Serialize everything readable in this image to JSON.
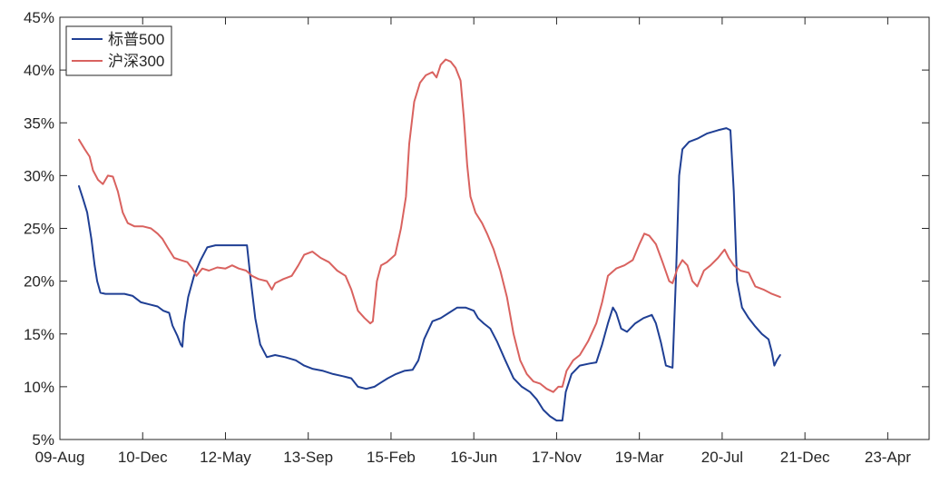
{
  "chart_data": {
    "type": "line",
    "title": "",
    "xlabel": "",
    "ylabel": "",
    "ylim": [
      0.05,
      0.45
    ],
    "xlim": [
      0,
      10.5
    ],
    "y_ticks": [
      {
        "value": 0.05,
        "label": "5%"
      },
      {
        "value": 0.1,
        "label": "10%"
      },
      {
        "value": 0.15,
        "label": "15%"
      },
      {
        "value": 0.2,
        "label": "20%"
      },
      {
        "value": 0.25,
        "label": "25%"
      },
      {
        "value": 0.3,
        "label": "30%"
      },
      {
        "value": 0.35,
        "label": "35%"
      },
      {
        "value": 0.4,
        "label": "40%"
      },
      {
        "value": 0.45,
        "label": "45%"
      }
    ],
    "x_ticks": [
      {
        "value": 0,
        "label": "09-Aug"
      },
      {
        "value": 1,
        "label": "10-Dec"
      },
      {
        "value": 2,
        "label": "12-May"
      },
      {
        "value": 3,
        "label": "13-Sep"
      },
      {
        "value": 4,
        "label": "15-Feb"
      },
      {
        "value": 5,
        "label": "16-Jun"
      },
      {
        "value": 6,
        "label": "17-Nov"
      },
      {
        "value": 7,
        "label": "19-Mar"
      },
      {
        "value": 8,
        "label": "20-Jul"
      },
      {
        "value": 9,
        "label": "21-Dec"
      },
      {
        "value": 10,
        "label": "23-Apr"
      }
    ],
    "grid": false,
    "legend": "top-left",
    "series": [
      {
        "name": "标普500",
        "color": "#1f3f94",
        "points": [
          [
            0.23,
            0.29
          ],
          [
            0.28,
            0.278
          ],
          [
            0.33,
            0.265
          ],
          [
            0.38,
            0.24
          ],
          [
            0.42,
            0.215
          ],
          [
            0.45,
            0.2
          ],
          [
            0.49,
            0.189
          ],
          [
            0.55,
            0.188
          ],
          [
            0.65,
            0.188
          ],
          [
            0.78,
            0.188
          ],
          [
            0.88,
            0.186
          ],
          [
            0.98,
            0.18
          ],
          [
            1.08,
            0.178
          ],
          [
            1.18,
            0.176
          ],
          [
            1.25,
            0.172
          ],
          [
            1.32,
            0.17
          ],
          [
            1.36,
            0.158
          ],
          [
            1.42,
            0.148
          ],
          [
            1.46,
            0.14
          ],
          [
            1.48,
            0.138
          ],
          [
            1.5,
            0.16
          ],
          [
            1.55,
            0.185
          ],
          [
            1.62,
            0.205
          ],
          [
            1.7,
            0.22
          ],
          [
            1.78,
            0.232
          ],
          [
            1.88,
            0.234
          ],
          [
            1.98,
            0.234
          ],
          [
            2.08,
            0.234
          ],
          [
            2.18,
            0.234
          ],
          [
            2.26,
            0.234
          ],
          [
            2.3,
            0.205
          ],
          [
            2.36,
            0.165
          ],
          [
            2.42,
            0.14
          ],
          [
            2.5,
            0.128
          ],
          [
            2.6,
            0.13
          ],
          [
            2.72,
            0.128
          ],
          [
            2.85,
            0.125
          ],
          [
            2.95,
            0.12
          ],
          [
            3.05,
            0.117
          ],
          [
            3.18,
            0.115
          ],
          [
            3.3,
            0.112
          ],
          [
            3.42,
            0.11
          ],
          [
            3.52,
            0.108
          ],
          [
            3.6,
            0.1
          ],
          [
            3.7,
            0.098
          ],
          [
            3.8,
            0.1
          ],
          [
            3.88,
            0.104
          ],
          [
            3.96,
            0.108
          ],
          [
            4.06,
            0.112
          ],
          [
            4.16,
            0.115
          ],
          [
            4.26,
            0.116
          ],
          [
            4.33,
            0.125
          ],
          [
            4.4,
            0.145
          ],
          [
            4.5,
            0.162
          ],
          [
            4.6,
            0.165
          ],
          [
            4.7,
            0.17
          ],
          [
            4.8,
            0.175
          ],
          [
            4.9,
            0.175
          ],
          [
            5.0,
            0.172
          ],
          [
            5.05,
            0.165
          ],
          [
            5.12,
            0.16
          ],
          [
            5.2,
            0.155
          ],
          [
            5.28,
            0.143
          ],
          [
            5.38,
            0.125
          ],
          [
            5.48,
            0.108
          ],
          [
            5.58,
            0.1
          ],
          [
            5.68,
            0.095
          ],
          [
            5.76,
            0.088
          ],
          [
            5.84,
            0.078
          ],
          [
            5.92,
            0.072
          ],
          [
            6.0,
            0.068
          ],
          [
            6.07,
            0.068
          ],
          [
            6.11,
            0.095
          ],
          [
            6.18,
            0.112
          ],
          [
            6.28,
            0.12
          ],
          [
            6.4,
            0.122
          ],
          [
            6.48,
            0.123
          ],
          [
            6.55,
            0.14
          ],
          [
            6.62,
            0.16
          ],
          [
            6.68,
            0.175
          ],
          [
            6.72,
            0.17
          ],
          [
            6.78,
            0.155
          ],
          [
            6.85,
            0.152
          ],
          [
            6.95,
            0.16
          ],
          [
            7.05,
            0.165
          ],
          [
            7.15,
            0.168
          ],
          [
            7.2,
            0.16
          ],
          [
            7.26,
            0.142
          ],
          [
            7.32,
            0.12
          ],
          [
            7.4,
            0.118
          ],
          [
            7.44,
            0.2
          ],
          [
            7.48,
            0.3
          ],
          [
            7.52,
            0.325
          ],
          [
            7.6,
            0.332
          ],
          [
            7.7,
            0.335
          ],
          [
            7.82,
            0.34
          ],
          [
            7.95,
            0.343
          ],
          [
            8.05,
            0.345
          ],
          [
            8.1,
            0.343
          ],
          [
            8.14,
            0.285
          ],
          [
            8.18,
            0.2
          ],
          [
            8.24,
            0.175
          ],
          [
            8.32,
            0.165
          ],
          [
            8.4,
            0.157
          ],
          [
            8.48,
            0.15
          ],
          [
            8.56,
            0.145
          ],
          [
            8.6,
            0.133
          ],
          [
            8.63,
            0.12
          ],
          [
            8.66,
            0.125
          ],
          [
            8.7,
            0.13
          ]
        ]
      },
      {
        "name": "沪深300",
        "color": "#d9625f",
        "points": [
          [
            0.23,
            0.334
          ],
          [
            0.3,
            0.325
          ],
          [
            0.36,
            0.318
          ],
          [
            0.4,
            0.305
          ],
          [
            0.46,
            0.296
          ],
          [
            0.52,
            0.292
          ],
          [
            0.58,
            0.3
          ],
          [
            0.64,
            0.299
          ],
          [
            0.7,
            0.285
          ],
          [
            0.76,
            0.265
          ],
          [
            0.82,
            0.255
          ],
          [
            0.9,
            0.252
          ],
          [
            1.0,
            0.252
          ],
          [
            1.1,
            0.25
          ],
          [
            1.18,
            0.245
          ],
          [
            1.24,
            0.24
          ],
          [
            1.3,
            0.232
          ],
          [
            1.38,
            0.222
          ],
          [
            1.46,
            0.22
          ],
          [
            1.54,
            0.218
          ],
          [
            1.6,
            0.212
          ],
          [
            1.65,
            0.205
          ],
          [
            1.72,
            0.212
          ],
          [
            1.8,
            0.21
          ],
          [
            1.9,
            0.213
          ],
          [
            2.0,
            0.212
          ],
          [
            2.08,
            0.215
          ],
          [
            2.16,
            0.212
          ],
          [
            2.25,
            0.21
          ],
          [
            2.32,
            0.205
          ],
          [
            2.4,
            0.202
          ],
          [
            2.5,
            0.2
          ],
          [
            2.56,
            0.192
          ],
          [
            2.6,
            0.198
          ],
          [
            2.7,
            0.202
          ],
          [
            2.8,
            0.205
          ],
          [
            2.88,
            0.215
          ],
          [
            2.95,
            0.225
          ],
          [
            3.05,
            0.228
          ],
          [
            3.15,
            0.222
          ],
          [
            3.25,
            0.218
          ],
          [
            3.35,
            0.21
          ],
          [
            3.45,
            0.205
          ],
          [
            3.52,
            0.192
          ],
          [
            3.6,
            0.172
          ],
          [
            3.68,
            0.165
          ],
          [
            3.75,
            0.16
          ],
          [
            3.78,
            0.162
          ],
          [
            3.83,
            0.2
          ],
          [
            3.88,
            0.215
          ],
          [
            3.95,
            0.218
          ],
          [
            4.05,
            0.225
          ],
          [
            4.12,
            0.25
          ],
          [
            4.18,
            0.28
          ],
          [
            4.22,
            0.33
          ],
          [
            4.28,
            0.37
          ],
          [
            4.35,
            0.388
          ],
          [
            4.42,
            0.395
          ],
          [
            4.5,
            0.398
          ],
          [
            4.55,
            0.393
          ],
          [
            4.6,
            0.405
          ],
          [
            4.66,
            0.41
          ],
          [
            4.72,
            0.408
          ],
          [
            4.78,
            0.402
          ],
          [
            4.84,
            0.39
          ],
          [
            4.88,
            0.355
          ],
          [
            4.92,
            0.31
          ],
          [
            4.96,
            0.28
          ],
          [
            5.02,
            0.265
          ],
          [
            5.1,
            0.255
          ],
          [
            5.16,
            0.245
          ],
          [
            5.24,
            0.23
          ],
          [
            5.32,
            0.21
          ],
          [
            5.4,
            0.185
          ],
          [
            5.48,
            0.15
          ],
          [
            5.56,
            0.125
          ],
          [
            5.64,
            0.112
          ],
          [
            5.72,
            0.105
          ],
          [
            5.8,
            0.103
          ],
          [
            5.88,
            0.098
          ],
          [
            5.96,
            0.095
          ],
          [
            6.02,
            0.1
          ],
          [
            6.07,
            0.1
          ],
          [
            6.12,
            0.115
          ],
          [
            6.2,
            0.125
          ],
          [
            6.28,
            0.13
          ],
          [
            6.38,
            0.143
          ],
          [
            6.48,
            0.16
          ],
          [
            6.55,
            0.18
          ],
          [
            6.62,
            0.205
          ],
          [
            6.72,
            0.212
          ],
          [
            6.82,
            0.215
          ],
          [
            6.92,
            0.22
          ],
          [
            7.0,
            0.235
          ],
          [
            7.06,
            0.245
          ],
          [
            7.12,
            0.243
          ],
          [
            7.2,
            0.235
          ],
          [
            7.28,
            0.218
          ],
          [
            7.36,
            0.2
          ],
          [
            7.4,
            0.198
          ],
          [
            7.46,
            0.212
          ],
          [
            7.52,
            0.22
          ],
          [
            7.58,
            0.215
          ],
          [
            7.64,
            0.2
          ],
          [
            7.7,
            0.195
          ],
          [
            7.78,
            0.21
          ],
          [
            7.86,
            0.215
          ],
          [
            7.95,
            0.222
          ],
          [
            8.03,
            0.23
          ],
          [
            8.08,
            0.222
          ],
          [
            8.14,
            0.215
          ],
          [
            8.22,
            0.21
          ],
          [
            8.32,
            0.208
          ],
          [
            8.4,
            0.195
          ],
          [
            8.5,
            0.192
          ],
          [
            8.6,
            0.188
          ],
          [
            8.7,
            0.185
          ]
        ]
      }
    ]
  }
}
